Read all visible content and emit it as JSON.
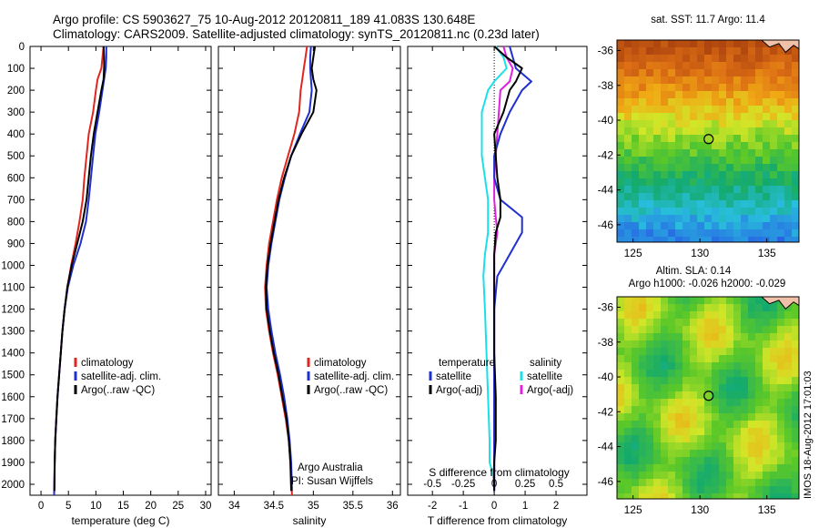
{
  "header": {
    "line1": "Argo profile: CS 5903627_75 10-Aug-2012 20120811_189 41.083S 130.648E",
    "line2": "Climatology: CARS2009. Satellite-adjusted climatology: synTS_20120811.nc (0.23d later)"
  },
  "colors": {
    "climatology": "#e0261f",
    "satellite": "#1f2fd0",
    "argo": "#000000",
    "satellite_salinity": "#19e0e8",
    "argo_adj_salinity": "#e020e0"
  },
  "shared_depth_axis": {
    "range": [
      2050,
      0
    ],
    "ticks": [
      0,
      100,
      200,
      300,
      400,
      500,
      600,
      700,
      800,
      900,
      1000,
      1100,
      1200,
      1300,
      1400,
      1500,
      1600,
      1700,
      1800,
      1900,
      2000
    ]
  },
  "panels": {
    "temperature": {
      "xlabel": "temperature (deg C)",
      "xticks": [
        "0",
        "5",
        "10",
        "15",
        "20",
        "25",
        "30"
      ],
      "legend": [
        "climatology",
        "satellite-adj. clim.",
        "Argo(..raw -QC)"
      ]
    },
    "salinity": {
      "xlabel": "salinity",
      "xticks": [
        "34",
        "34.5",
        "35",
        "35.5",
        "36"
      ],
      "legend": [
        "climatology",
        "satellite-adj. clim.",
        "Argo(..raw -QC)"
      ],
      "note1": "Argo Australia",
      "note2": "PI: Susan Wijffels"
    },
    "difference": {
      "xlabel": "T difference from climatology",
      "xticks": [
        "-2",
        "-1",
        "0",
        "1",
        "2"
      ],
      "top_axis_label": "S difference from climatology",
      "top_xticks": [
        "-0.5",
        "-0.25",
        "0",
        "0.25",
        "0.5"
      ],
      "legend_temp_title": "temperature",
      "legend_temp": [
        "satellite",
        "Argo(-adj)"
      ],
      "legend_sal_title": "salinity",
      "legend_sal": [
        "satellite",
        "Argo(-adj)"
      ]
    },
    "sst_map": {
      "title": "sat. SST: 11.7  Argo: 11.4",
      "xticks": [
        "125",
        "130",
        "135"
      ],
      "yticks": [
        "-36",
        "-38",
        "-40",
        "-42",
        "-44",
        "-46"
      ]
    },
    "sla_map": {
      "title1": "Altim. SLA: 0.14",
      "title2": "Argo h1000: -0.026 h2000: -0.029",
      "xticks": [
        "125",
        "130",
        "135"
      ],
      "yticks": [
        "-36",
        "-38",
        "-40",
        "-42",
        "-44",
        "-46"
      ]
    }
  },
  "stamp": "IMOS 18-Aug-2012 17:01:03",
  "chart_data": [
    {
      "type": "line",
      "xlabel": "temperature (deg C)",
      "ylabel": "",
      "xlim": [
        -2,
        31
      ],
      "ylim": [
        2050,
        0
      ],
      "series": [
        {
          "name": "climatology",
          "x": [
            11.4,
            11.2,
            11.0,
            10.3,
            10.0,
            9.5,
            8.7,
            8.3,
            7.9,
            7.6,
            7.0,
            6.3,
            5.5,
            4.8,
            4.3,
            3.9,
            3.6,
            3.3,
            3.0,
            2.8,
            2.6,
            2.5,
            2.4
          ],
          "y": [
            0,
            50,
            100,
            150,
            200,
            300,
            400,
            500,
            600,
            700,
            800,
            900,
            1000,
            1100,
            1200,
            1300,
            1400,
            1500,
            1600,
            1700,
            1800,
            1900,
            2050
          ]
        },
        {
          "name": "satellite-adj. clim.",
          "x": [
            11.9,
            11.9,
            11.8,
            11.5,
            11.2,
            10.6,
            9.9,
            9.5,
            9.1,
            8.7,
            8.2,
            7.2,
            5.9,
            4.9,
            4.3,
            3.9,
            3.6,
            3.3,
            3.0,
            2.8,
            2.6,
            2.5,
            2.4
          ],
          "y": [
            0,
            50,
            100,
            150,
            200,
            300,
            400,
            500,
            600,
            700,
            800,
            900,
            1000,
            1100,
            1200,
            1300,
            1400,
            1500,
            1600,
            1700,
            1800,
            1900,
            2050
          ]
        },
        {
          "name": "Argo(..raw -QC)",
          "x": [
            11.4,
            11.5,
            11.5,
            11.4,
            11.0,
            10.3,
            9.6,
            9.1,
            8.7,
            8.3,
            7.6,
            6.6,
            5.6,
            4.8,
            4.3,
            3.9,
            3.6,
            3.3,
            3.0,
            2.8,
            2.6,
            2.5,
            2.45
          ],
          "y": [
            0,
            50,
            100,
            150,
            200,
            300,
            400,
            500,
            600,
            700,
            800,
            900,
            1000,
            1100,
            1200,
            1300,
            1400,
            1500,
            1600,
            1700,
            1800,
            1900,
            2030
          ]
        }
      ]
    },
    {
      "type": "line",
      "xlabel": "salinity",
      "ylabel": "",
      "xlim": [
        33.8,
        36.1
      ],
      "ylim": [
        2050,
        0
      ],
      "series": [
        {
          "name": "climatology",
          "x": [
            34.92,
            34.9,
            34.88,
            34.86,
            34.84,
            34.82,
            34.76,
            34.68,
            34.6,
            34.54,
            34.49,
            34.44,
            34.41,
            34.39,
            34.4,
            34.44,
            34.49,
            34.55,
            34.6,
            34.65,
            34.69,
            34.71,
            34.73
          ],
          "y": [
            0,
            50,
            100,
            150,
            200,
            300,
            400,
            500,
            600,
            700,
            800,
            900,
            1000,
            1100,
            1200,
            1300,
            1400,
            1500,
            1600,
            1700,
            1800,
            1900,
            2050
          ]
        },
        {
          "name": "satellite-adj. clim.",
          "x": [
            34.97,
            34.96,
            34.96,
            34.97,
            34.98,
            34.95,
            34.83,
            34.72,
            34.64,
            34.57,
            34.52,
            34.47,
            34.43,
            34.41,
            34.43,
            34.47,
            34.52,
            34.58,
            34.63,
            34.67,
            34.7,
            34.72,
            34.73
          ],
          "y": [
            0,
            50,
            100,
            150,
            200,
            300,
            400,
            500,
            600,
            700,
            800,
            900,
            1000,
            1100,
            1200,
            1300,
            1400,
            1500,
            1600,
            1700,
            1800,
            1900,
            2030
          ]
        },
        {
          "name": "Argo(..raw -QC)",
          "x": [
            35.02,
            35.0,
            34.98,
            35.0,
            35.04,
            35.0,
            34.85,
            34.72,
            34.63,
            34.56,
            34.51,
            34.46,
            34.42,
            34.4,
            34.41,
            34.45,
            34.5,
            34.56,
            34.61,
            34.66,
            34.69,
            34.71,
            34.72
          ],
          "y": [
            0,
            50,
            100,
            150,
            200,
            300,
            400,
            500,
            600,
            700,
            800,
            900,
            1000,
            1100,
            1200,
            1300,
            1400,
            1500,
            1600,
            1700,
            1800,
            1900,
            2030
          ]
        }
      ]
    },
    {
      "type": "line",
      "xlabel": "T difference from climatology",
      "ylabel": "",
      "xlim": [
        -2.8,
        3.0
      ],
      "ylim": [
        2050,
        0
      ],
      "series": [
        {
          "name": "satellite",
          "x": [
            0.5,
            0.6,
            0.7,
            1.2,
            0.9,
            0.5,
            0.2,
            0.0,
            0.0,
            0.2,
            0.9,
            0.9,
            0.5,
            0.1,
            0.0,
            0.0,
            0.0,
            0.0,
            0.0,
            0.0,
            0.0,
            0.0
          ],
          "y": [
            0,
            50,
            100,
            160,
            200,
            300,
            400,
            500,
            600,
            700,
            780,
            850,
            950,
            1050,
            1200,
            1400,
            1600,
            1800,
            1900,
            1950,
            2000,
            2030
          ]
        },
        {
          "name": "Argo(-adj)",
          "x": [
            0.0,
            0.4,
            0.9,
            0.7,
            0.5,
            0.3,
            0.0,
            0.05,
            0.1,
            0.2,
            0.2,
            0.05,
            0.0,
            0.0,
            0.0,
            0.0,
            0.05,
            0.05,
            0.0,
            0.0,
            0.0,
            0.0
          ],
          "y": [
            0,
            50,
            100,
            160,
            200,
            300,
            400,
            500,
            600,
            700,
            780,
            850,
            950,
            1050,
            1200,
            1400,
            1600,
            1800,
            1900,
            1950,
            2000,
            2030
          ]
        },
        {
          "name": "satellite",
          "x": [
            0.05,
            0.3,
            0.4,
            0.0,
            -0.2,
            -0.4,
            -0.4,
            -0.4,
            -0.3,
            -0.2,
            -0.2,
            -0.2,
            -0.3,
            -0.35,
            -0.3,
            -0.25,
            -0.2,
            -0.15,
            -0.15,
            -0.05,
            0.0,
            0.0
          ],
          "y": [
            0,
            50,
            100,
            160,
            200,
            300,
            400,
            500,
            600,
            700,
            780,
            850,
            950,
            1050,
            1200,
            1400,
            1600,
            1800,
            1900,
            1950,
            2000,
            2030
          ]
        },
        {
          "name": "Argo(-adj)",
          "x": [
            0.3,
            0.4,
            0.6,
            0.5,
            0.2,
            0.15,
            0.1,
            0.05,
            0.0,
            0.0,
            0.05,
            0.1,
            0.0,
            0.0,
            0.0,
            0.0,
            0.0,
            0.0,
            0.0,
            0.0,
            0.0,
            0.0
          ],
          "y": [
            0,
            50,
            100,
            160,
            200,
            300,
            400,
            500,
            600,
            700,
            780,
            850,
            950,
            1050,
            1200,
            1400,
            1600,
            1800,
            1900,
            1950,
            2000,
            2030
          ]
        }
      ]
    },
    {
      "type": "heatmap",
      "title": "sat. SST: 11.7  Argo: 11.4",
      "xlim": [
        123.8,
        137.4
      ],
      "ylim": [
        -47.0,
        -35.4
      ],
      "argo_position": [
        130.648,
        -41.083
      ]
    },
    {
      "type": "heatmap",
      "title": "Altim. SLA: 0.14",
      "xlim": [
        123.8,
        137.4
      ],
      "ylim": [
        -47.0,
        -35.4
      ],
      "argo_position": [
        130.648,
        -41.083
      ]
    }
  ]
}
